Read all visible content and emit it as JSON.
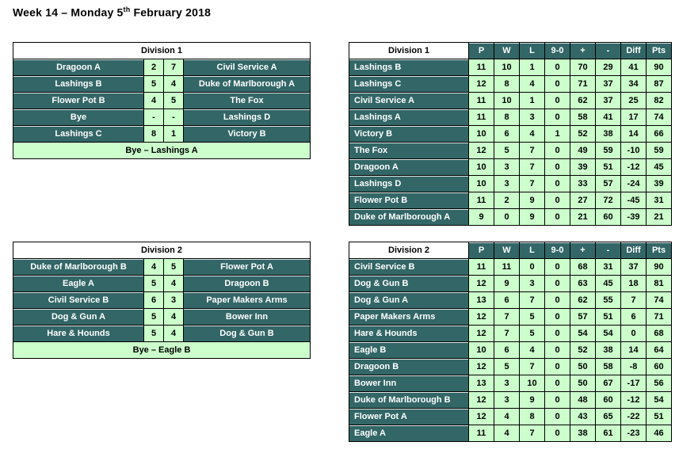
{
  "title": {
    "prefix": "Week 14 – Monday 5",
    "superscript": "th",
    "suffix": " February 2018"
  },
  "colors": {
    "team_cell_background": "#336666",
    "score_cell_background": "#ccffcc",
    "division_header_background": "#ffffff",
    "text_on_teal": "#ffffff",
    "text_dark": "#000000"
  },
  "results": [
    {
      "title": "Division 1",
      "matches": [
        {
          "home": "Dragoon A",
          "home_score": "2",
          "away_score": "7",
          "away": "Civil Service A"
        },
        {
          "home": "Lashings B",
          "home_score": "5",
          "away_score": "4",
          "away": "Duke of Marlborough A"
        },
        {
          "home": "Flower Pot B",
          "home_score": "4",
          "away_score": "5",
          "away": "The Fox"
        },
        {
          "home": "Bye",
          "home_score": "-",
          "away_score": "-",
          "away": "Lashings D"
        },
        {
          "home": "Lashings C",
          "home_score": "8",
          "away_score": "1",
          "away": "Victory B"
        }
      ],
      "footer": "Bye – Lashings A"
    },
    {
      "title": "Division 2",
      "matches": [
        {
          "home": "Duke of Marlborough B",
          "home_score": "4",
          "away_score": "5",
          "away": "Flower Pot A"
        },
        {
          "home": "Eagle A",
          "home_score": "5",
          "away_score": "4",
          "away": "Dragoon B"
        },
        {
          "home": "Civil Service B",
          "home_score": "6",
          "away_score": "3",
          "away": "Paper Makers Arms"
        },
        {
          "home": "Dog & Gun A",
          "home_score": "5",
          "away_score": "4",
          "away": "Bower Inn"
        },
        {
          "home": "Hare & Hounds",
          "home_score": "5",
          "away_score": "4",
          "away": "Dog & Gun B"
        }
      ],
      "footer": "Bye – Eagle B"
    }
  ],
  "standings": [
    {
      "title": "Division 1",
      "columns": [
        "P",
        "W",
        "L",
        "9-0",
        "+",
        "-",
        "Diff",
        "Pts"
      ],
      "rows": [
        {
          "team": "Lashings B",
          "values": [
            11,
            10,
            1,
            0,
            70,
            29,
            41,
            90
          ]
        },
        {
          "team": "Lashings C",
          "values": [
            12,
            8,
            4,
            0,
            71,
            37,
            34,
            87
          ]
        },
        {
          "team": "Civil Service A",
          "values": [
            11,
            10,
            1,
            0,
            62,
            37,
            25,
            82
          ]
        },
        {
          "team": "Lashings A",
          "values": [
            11,
            8,
            3,
            0,
            58,
            41,
            17,
            74
          ]
        },
        {
          "team": "Victory B",
          "values": [
            10,
            6,
            4,
            1,
            52,
            38,
            14,
            66
          ]
        },
        {
          "team": "The Fox",
          "values": [
            12,
            5,
            7,
            0,
            49,
            59,
            -10,
            59
          ]
        },
        {
          "team": "Dragoon A",
          "values": [
            10,
            3,
            7,
            0,
            39,
            51,
            -12,
            45
          ]
        },
        {
          "team": "Lashings D",
          "values": [
            10,
            3,
            7,
            0,
            33,
            57,
            -24,
            39
          ]
        },
        {
          "team": "Flower Pot B",
          "values": [
            11,
            2,
            9,
            0,
            27,
            72,
            -45,
            31
          ]
        },
        {
          "team": "Duke of Marlborough A",
          "values": [
            9,
            0,
            9,
            0,
            21,
            60,
            -39,
            21
          ]
        }
      ]
    },
    {
      "title": "Division 2",
      "columns": [
        "P",
        "W",
        "L",
        "9-0",
        "+",
        "-",
        "Diff",
        "Pts"
      ],
      "rows": [
        {
          "team": "Civil Service B",
          "values": [
            11,
            11,
            0,
            0,
            68,
            31,
            37,
            90
          ]
        },
        {
          "team": "Dog & Gun B",
          "values": [
            12,
            9,
            3,
            0,
            63,
            45,
            18,
            81
          ]
        },
        {
          "team": "Dog & Gun A",
          "values": [
            13,
            6,
            7,
            0,
            62,
            55,
            7,
            74
          ]
        },
        {
          "team": "Paper Makers Arms",
          "values": [
            12,
            7,
            5,
            0,
            57,
            51,
            6,
            71
          ]
        },
        {
          "team": "Hare & Hounds",
          "values": [
            12,
            7,
            5,
            0,
            54,
            54,
            0,
            68
          ]
        },
        {
          "team": "Eagle B",
          "values": [
            10,
            6,
            4,
            0,
            52,
            38,
            14,
            64
          ]
        },
        {
          "team": "Dragoon B",
          "values": [
            12,
            5,
            7,
            0,
            50,
            58,
            -8,
            60
          ]
        },
        {
          "team": "Bower Inn",
          "values": [
            13,
            3,
            10,
            0,
            50,
            67,
            -17,
            56
          ]
        },
        {
          "team": "Duke of Marlborough B",
          "values": [
            12,
            3,
            9,
            0,
            48,
            60,
            -12,
            54
          ]
        },
        {
          "team": "Flower Pot A",
          "values": [
            12,
            4,
            8,
            0,
            43,
            65,
            -22,
            51
          ]
        },
        {
          "team": "Eagle A",
          "values": [
            11,
            4,
            7,
            0,
            38,
            61,
            -23,
            46
          ]
        }
      ]
    }
  ]
}
